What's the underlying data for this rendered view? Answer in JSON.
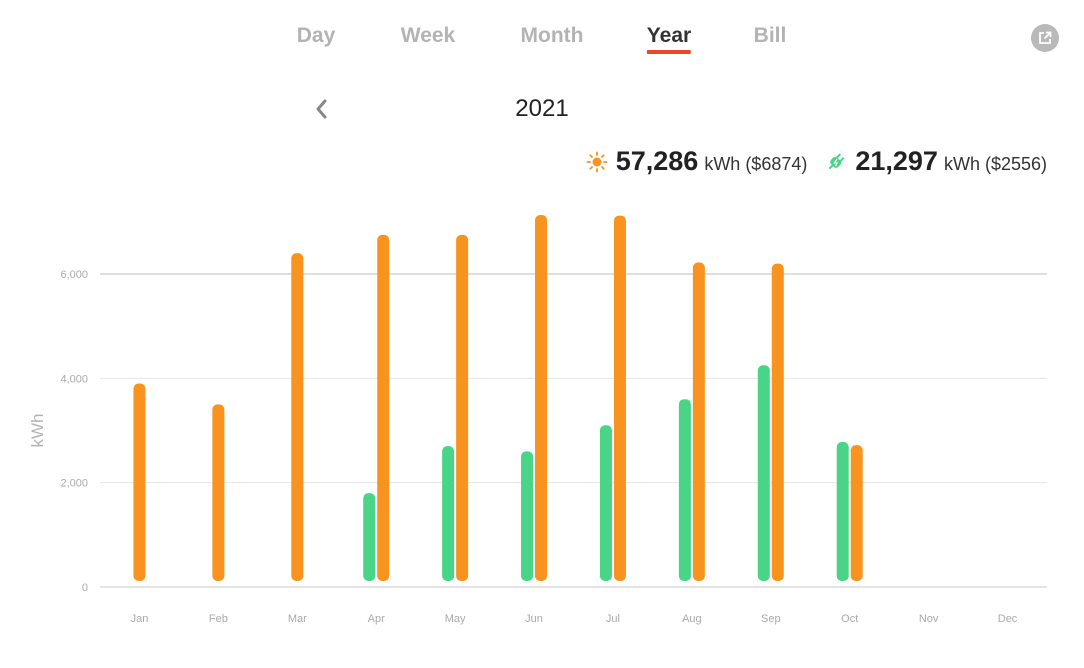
{
  "tabs": [
    {
      "label": "Day"
    },
    {
      "label": "Week"
    },
    {
      "label": "Month"
    },
    {
      "label": "Year",
      "active": true
    },
    {
      "label": "Bill"
    }
  ],
  "period": {
    "label": "2021"
  },
  "summary": {
    "solar": {
      "value": "57,286",
      "unit": "kWh ($6874)",
      "icon": "sun-icon",
      "color": "#f7931e"
    },
    "grid": {
      "value": "21,297",
      "unit": "kWh ($2556)",
      "icon": "plug-icon",
      "color": "#48d587"
    }
  },
  "icons": {
    "export": "export-icon",
    "prev": "chevron-left-icon"
  },
  "chart_data": {
    "type": "bar",
    "ylabel": "kWh",
    "xlabel": "",
    "ylim": [
      0,
      7200
    ],
    "yticks": [
      0,
      2000,
      4000,
      6000
    ],
    "ytick_labels": [
      "0",
      "2,000",
      "4,000",
      "6,000"
    ],
    "grid": true,
    "categories": [
      "Jan",
      "Feb",
      "Mar",
      "Apr",
      "May",
      "Jun",
      "Jul",
      "Aug",
      "Sep",
      "Oct",
      "Nov",
      "Dec"
    ],
    "series": [
      {
        "key": "grid",
        "color": "#48d587",
        "values": [
          null,
          null,
          null,
          1800,
          2700,
          2600,
          3100,
          3600,
          4250,
          2780,
          null,
          null
        ]
      },
      {
        "key": "solar",
        "color": "#f7931e",
        "values": [
          3900,
          3500,
          6400,
          6750,
          6750,
          7130,
          7120,
          6220,
          6200,
          2720,
          null,
          null
        ]
      }
    ]
  }
}
